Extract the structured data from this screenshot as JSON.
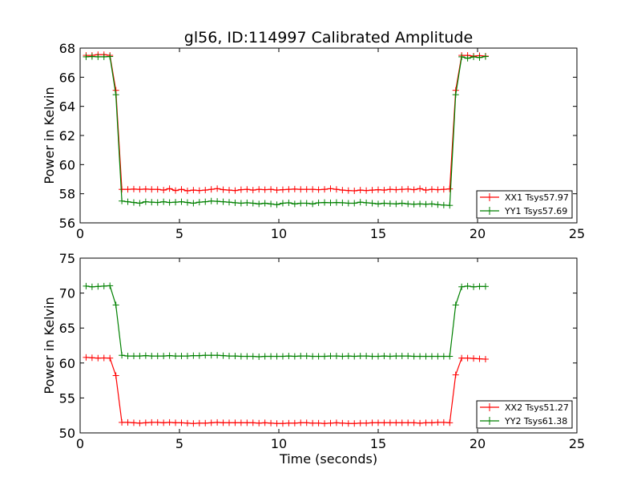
{
  "chart_data": [
    {
      "type": "line",
      "title": "gl56, ID:114997 Calibrated Amplitude",
      "xlabel": "",
      "ylabel": "Power in Kelvin",
      "xlim": [
        0,
        25
      ],
      "ylim": [
        56,
        68
      ],
      "xticks": [
        "0",
        "5",
        "10",
        "15",
        "20",
        "25"
      ],
      "yticks": [
        "56",
        "58",
        "60",
        "62",
        "64",
        "66",
        "68"
      ],
      "grid": false,
      "legend_position": "lower-right",
      "x": [
        0.3,
        0.6,
        0.9,
        1.2,
        1.5,
        1.8,
        2.1,
        2.4,
        2.7,
        3.0,
        3.3,
        3.6,
        3.9,
        4.2,
        4.5,
        4.8,
        5.1,
        5.4,
        5.7,
        6.0,
        6.3,
        6.6,
        6.9,
        7.2,
        7.5,
        7.8,
        8.1,
        8.4,
        8.7,
        9.0,
        9.3,
        9.6,
        9.9,
        10.2,
        10.5,
        10.8,
        11.1,
        11.4,
        11.7,
        12.0,
        12.3,
        12.6,
        12.9,
        13.2,
        13.5,
        13.8,
        14.1,
        14.4,
        14.7,
        15.0,
        15.3,
        15.6,
        15.9,
        16.2,
        16.5,
        16.8,
        17.1,
        17.4,
        17.7,
        18.0,
        18.3,
        18.6,
        18.9,
        19.2,
        19.5,
        19.8,
        20.1,
        20.4
      ],
      "series": [
        {
          "name": "XX1 Tsys57.97",
          "color": "#ff0000",
          "values": [
            67.5,
            67.5,
            67.55,
            67.55,
            67.5,
            65.1,
            58.3,
            58.3,
            58.32,
            58.3,
            58.32,
            58.3,
            58.3,
            58.25,
            58.35,
            58.22,
            58.3,
            58.2,
            58.25,
            58.22,
            58.25,
            58.3,
            58.35,
            58.28,
            58.25,
            58.22,
            58.28,
            58.3,
            58.25,
            58.3,
            58.28,
            58.3,
            58.25,
            58.28,
            58.3,
            58.32,
            58.3,
            58.3,
            58.3,
            58.28,
            58.3,
            58.35,
            58.3,
            58.25,
            58.22,
            58.2,
            58.25,
            58.22,
            58.25,
            58.28,
            58.25,
            58.3,
            58.28,
            58.3,
            58.32,
            58.28,
            58.35,
            58.25,
            58.3,
            58.28,
            58.3,
            58.33,
            65.1,
            67.5,
            67.5,
            67.45,
            67.48,
            67.45
          ]
        },
        {
          "name": "YY1 Tsys57.69",
          "color": "#008000",
          "values": [
            67.4,
            67.42,
            67.4,
            67.4,
            67.42,
            64.8,
            57.5,
            57.45,
            57.4,
            57.35,
            57.45,
            57.42,
            57.4,
            57.45,
            57.4,
            57.42,
            57.45,
            57.4,
            57.35,
            57.42,
            57.45,
            57.5,
            57.48,
            57.45,
            57.42,
            57.38,
            57.35,
            57.38,
            57.35,
            57.3,
            57.35,
            57.3,
            57.25,
            57.35,
            57.38,
            57.3,
            57.35,
            57.35,
            57.3,
            57.38,
            57.4,
            57.38,
            57.4,
            57.38,
            57.35,
            57.35,
            57.42,
            57.38,
            57.35,
            57.3,
            57.35,
            57.32,
            57.3,
            57.35,
            57.3,
            57.28,
            57.3,
            57.28,
            57.3,
            57.25,
            57.22,
            57.2,
            64.8,
            67.4,
            67.3,
            67.4,
            67.35,
            67.42
          ]
        }
      ]
    },
    {
      "type": "line",
      "title": "",
      "xlabel": "Time (seconds)",
      "ylabel": "Power in Kelvin",
      "xlim": [
        0,
        25
      ],
      "ylim": [
        50,
        75
      ],
      "xticks": [
        "0",
        "5",
        "10",
        "15",
        "20",
        "25"
      ],
      "yticks": [
        "50",
        "55",
        "60",
        "65",
        "70",
        "75"
      ],
      "grid": false,
      "legend_position": "lower-right",
      "x": [
        0.3,
        0.6,
        0.9,
        1.2,
        1.5,
        1.8,
        2.1,
        2.4,
        2.7,
        3.0,
        3.3,
        3.6,
        3.9,
        4.2,
        4.5,
        4.8,
        5.1,
        5.4,
        5.7,
        6.0,
        6.3,
        6.6,
        6.9,
        7.2,
        7.5,
        7.8,
        8.1,
        8.4,
        8.7,
        9.0,
        9.3,
        9.6,
        9.9,
        10.2,
        10.5,
        10.8,
        11.1,
        11.4,
        11.7,
        12.0,
        12.3,
        12.6,
        12.9,
        13.2,
        13.5,
        13.8,
        14.1,
        14.4,
        14.7,
        15.0,
        15.3,
        15.6,
        15.9,
        16.2,
        16.5,
        16.8,
        17.1,
        17.4,
        17.7,
        18.0,
        18.3,
        18.6,
        18.9,
        19.2,
        19.5,
        19.8,
        20.1,
        20.4
      ],
      "series": [
        {
          "name": "XX2 Tsys51.27",
          "color": "#ff0000",
          "values": [
            60.8,
            60.75,
            60.7,
            60.72,
            60.7,
            58.2,
            51.5,
            51.5,
            51.45,
            51.4,
            51.45,
            51.5,
            51.5,
            51.45,
            51.5,
            51.45,
            51.45,
            51.4,
            51.35,
            51.4,
            51.4,
            51.45,
            51.5,
            51.45,
            51.45,
            51.45,
            51.45,
            51.45,
            51.45,
            51.4,
            51.45,
            51.4,
            51.35,
            51.35,
            51.4,
            51.4,
            51.45,
            51.45,
            51.4,
            51.4,
            51.35,
            51.4,
            51.45,
            51.4,
            51.35,
            51.35,
            51.4,
            51.4,
            51.45,
            51.45,
            51.45,
            51.45,
            51.45,
            51.45,
            51.45,
            51.45,
            51.4,
            51.45,
            51.45,
            51.5,
            51.5,
            51.45,
            58.3,
            60.7,
            60.7,
            60.65,
            60.6,
            60.55
          ]
        },
        {
          "name": "YY2 Tsys61.38",
          "color": "#008000",
          "values": [
            71.0,
            70.9,
            70.95,
            71.0,
            71.05,
            68.3,
            61.1,
            61.0,
            61.0,
            61.0,
            61.05,
            61.0,
            61.0,
            61.0,
            61.05,
            61.0,
            61.0,
            61.0,
            61.05,
            61.05,
            61.1,
            61.1,
            61.1,
            61.05,
            61.0,
            61.0,
            60.95,
            60.95,
            60.95,
            60.9,
            60.95,
            60.95,
            60.95,
            60.95,
            61.0,
            60.95,
            61.0,
            61.0,
            60.95,
            60.95,
            60.95,
            61.0,
            61.0,
            60.95,
            61.0,
            60.95,
            61.0,
            61.0,
            60.95,
            60.95,
            61.0,
            60.95,
            61.0,
            61.0,
            61.0,
            60.95,
            60.95,
            60.95,
            60.95,
            60.95,
            60.95,
            60.95,
            68.3,
            70.9,
            71.0,
            70.9,
            70.95,
            70.95
          ]
        }
      ]
    }
  ]
}
